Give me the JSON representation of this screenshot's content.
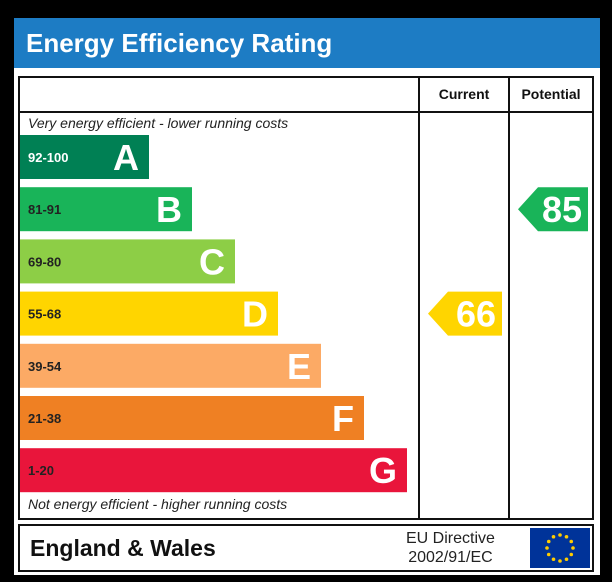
{
  "title": "Energy Efficiency Rating",
  "columns": {
    "current": "Current",
    "potential": "Potential"
  },
  "notes": {
    "top": "Very energy efficient - lower running costs",
    "bottom": "Not energy efficient - higher running costs"
  },
  "footer": {
    "region": "England & Wales",
    "directive_line1": "EU Directive",
    "directive_line2": "2002/91/EC"
  },
  "chart_data": {
    "type": "bar",
    "categories": [
      "A",
      "B",
      "C",
      "D",
      "E",
      "F",
      "G"
    ],
    "ranges": [
      "92-100",
      "81-91",
      "69-80",
      "55-68",
      "39-54",
      "21-38",
      "1-20"
    ],
    "colors": [
      "#008054",
      "#19b459",
      "#8dce46",
      "#ffd500",
      "#fcaa65",
      "#ef8023",
      "#e9153b"
    ],
    "current": {
      "value": 66,
      "band": "D",
      "color": "#ffd500"
    },
    "potential": {
      "value": 85,
      "band": "B",
      "color": "#19b459"
    }
  }
}
